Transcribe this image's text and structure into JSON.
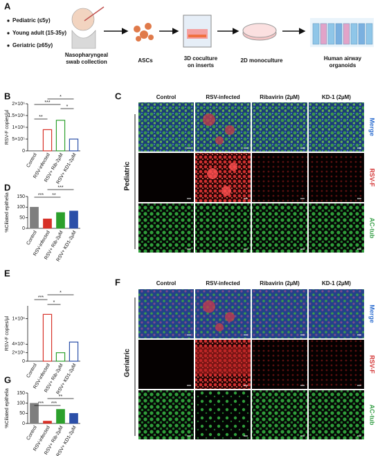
{
  "panel_a": {
    "label": "A",
    "groups": [
      "Pediatric (≤5y)",
      "Young adult (15-35y)",
      "Geriatric (≥65y)"
    ],
    "steps": [
      "Nasopharyngeal",
      "swab collection",
      "ASCs",
      "3D coculture",
      "on inserts",
      "2D monoculture",
      "Human airway",
      "organoids"
    ]
  },
  "panel_c": {
    "label": "C",
    "group": "Pediatric",
    "columns": [
      "Control",
      "RSV-infected",
      "Ribavirin (2µM)",
      "KD-1 (2µM)"
    ],
    "rows": [
      "Merge",
      "RSV-F",
      "AC-tub"
    ]
  },
  "panel_f": {
    "label": "F",
    "group": "Geriatric",
    "columns": [
      "Control",
      "RSV-infected",
      "Ribavirin (2µM)",
      "KD-1 (2µM)"
    ],
    "rows": [
      "Merge",
      "RSV-F",
      "AC-tub"
    ]
  },
  "chart_data": [
    {
      "type": "bar",
      "panel": "B",
      "bar_style": "outline",
      "y_label": "RSV-F copies/µl",
      "categories": [
        "Control",
        "RSV-infected",
        "RSV+ Rib-2μM",
        "RSV+ KD1-2μM"
      ],
      "values": [
        0,
        900000,
        1300000,
        500000
      ],
      "colors": [
        "#555555",
        "#d73027",
        "#2ca02c",
        "#2b4fa8"
      ],
      "ylim": [
        0,
        2000000
      ],
      "yticks": [
        0,
        {
          "value": 500000,
          "label": "5×10⁵"
        },
        {
          "value": 1000000,
          "label": "1×10⁶"
        },
        {
          "value": 1500000,
          "label": "1.5×10⁶"
        },
        {
          "value": 2000000,
          "label": "2×10⁶"
        }
      ],
      "significance": [
        "*",
        "***",
        "*",
        "**"
      ]
    },
    {
      "type": "bar",
      "panel": "D",
      "bar_style": "filled",
      "y_label": "%Ciliated epithelia",
      "categories": [
        "Control",
        "RSV-infected",
        "RSV+ Rib-2μM",
        "RSV+ KD1-2μM"
      ],
      "values": [
        100,
        45,
        75,
        82
      ],
      "colors": [
        "#7f7f7f",
        "#d73027",
        "#2ca02c",
        "#2b4fa8"
      ],
      "ylim": [
        0,
        150
      ],
      "yticks": [
        0,
        50,
        100,
        150
      ],
      "significance": [
        "***",
        "***",
        "**"
      ]
    },
    {
      "type": "bar",
      "panel": "E",
      "bar_style": "outline",
      "y_label": "RSV-F copies/µl",
      "categories": [
        "Control",
        "RSV-infected",
        "RSV+ Rib-2μM",
        "RSV+ KD1-2μM"
      ],
      "values": [
        0,
        1100000,
        200000,
        450000
      ],
      "colors": [
        "#555555",
        "#d73027",
        "#2ca02c",
        "#2b4fa8"
      ],
      "ylim": [
        0,
        1300000
      ],
      "yticks": [
        0,
        {
          "value": 200000,
          "label": "2×10⁵"
        },
        {
          "value": 400000,
          "label": "4×10⁵"
        },
        {
          "value": 1000000,
          "label": "1×10⁶"
        }
      ],
      "significance": [
        "*",
        "***",
        "*"
      ]
    },
    {
      "type": "bar",
      "panel": "G",
      "bar_style": "filled",
      "y_label": "%Ciliated epithelia",
      "categories": [
        "Control",
        "RSV-infected",
        "RSV+ Rib-2μM",
        "RSV+ KD1-2μM"
      ],
      "values": [
        100,
        12,
        70,
        50
      ],
      "colors": [
        "#7f7f7f",
        "#d73027",
        "#2ca02c",
        "#2b4fa8"
      ],
      "ylim": [
        0,
        150
      ],
      "yticks": [
        0,
        50,
        100,
        150
      ],
      "significance": [
        "**",
        "***",
        "***"
      ]
    }
  ]
}
